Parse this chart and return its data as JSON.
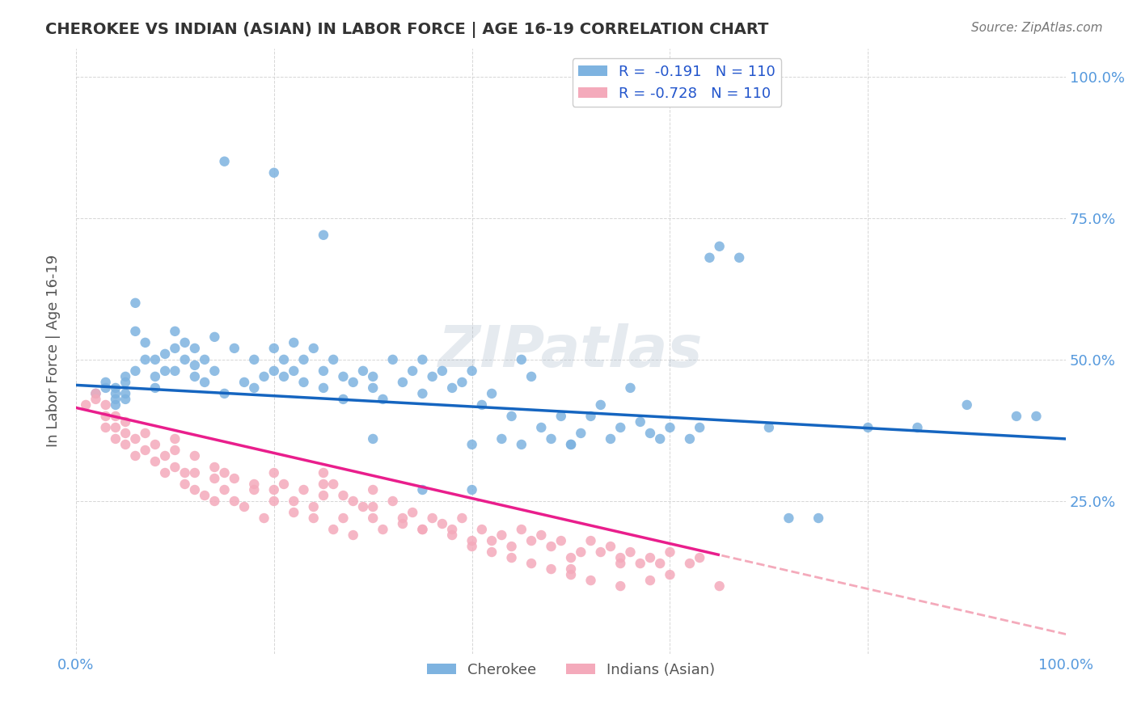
{
  "title": "CHEROKEE VS INDIAN (ASIAN) IN LABOR FORCE | AGE 16-19 CORRELATION CHART",
  "source": "Source: ZipAtlas.com",
  "ylabel": "In Labor Force | Age 16-19",
  "xlim": [
    0.0,
    1.0
  ],
  "ylim_min": -0.02,
  "ylim_max": 1.05,
  "watermark": "ZIPatlas",
  "legend_r1": "R =  -0.191   N = 110",
  "legend_r2": "R = -0.728   N = 110",
  "cherokee_color": "#7EB3E0",
  "indian_color": "#F4AABB",
  "cherokee_line_color": "#1565C0",
  "indian_line_color": "#E91E8C",
  "indian_line_dashed_color": "#F4AABB",
  "background_color": "#FFFFFF",
  "grid_color": "#CCCCCC",
  "title_color": "#333333",
  "axis_label_color": "#5599DD",
  "text_color": "#555555",
  "legend_text_color": "#2255CC",
  "cherokee_line_intercept": 0.455,
  "cherokee_line_slope": -0.095,
  "indian_line_intercept": 0.415,
  "indian_line_slope": -0.4,
  "indian_line_solid_end": 0.65,
  "cherokee_x": [
    0.02,
    0.03,
    0.03,
    0.04,
    0.04,
    0.04,
    0.04,
    0.05,
    0.05,
    0.05,
    0.05,
    0.06,
    0.06,
    0.06,
    0.07,
    0.07,
    0.08,
    0.08,
    0.08,
    0.09,
    0.09,
    0.1,
    0.1,
    0.1,
    0.11,
    0.11,
    0.12,
    0.12,
    0.12,
    0.13,
    0.13,
    0.14,
    0.14,
    0.15,
    0.16,
    0.17,
    0.18,
    0.18,
    0.19,
    0.2,
    0.2,
    0.21,
    0.21,
    0.22,
    0.22,
    0.23,
    0.23,
    0.24,
    0.25,
    0.25,
    0.26,
    0.27,
    0.27,
    0.28,
    0.29,
    0.3,
    0.3,
    0.31,
    0.32,
    0.33,
    0.34,
    0.35,
    0.35,
    0.36,
    0.37,
    0.38,
    0.39,
    0.4,
    0.4,
    0.41,
    0.42,
    0.43,
    0.44,
    0.45,
    0.46,
    0.47,
    0.48,
    0.49,
    0.5,
    0.51,
    0.52,
    0.53,
    0.54,
    0.55,
    0.56,
    0.57,
    0.58,
    0.59,
    0.6,
    0.62,
    0.63,
    0.64,
    0.65,
    0.67,
    0.7,
    0.72,
    0.75,
    0.8,
    0.85,
    0.9,
    0.95,
    0.97,
    0.15,
    0.2,
    0.25,
    0.3,
    0.35,
    0.4,
    0.45,
    0.5
  ],
  "cherokee_y": [
    0.44,
    0.46,
    0.45,
    0.42,
    0.43,
    0.44,
    0.45,
    0.46,
    0.47,
    0.43,
    0.44,
    0.6,
    0.55,
    0.48,
    0.5,
    0.53,
    0.45,
    0.47,
    0.5,
    0.48,
    0.51,
    0.52,
    0.55,
    0.48,
    0.5,
    0.53,
    0.47,
    0.52,
    0.49,
    0.46,
    0.5,
    0.54,
    0.48,
    0.44,
    0.52,
    0.46,
    0.5,
    0.45,
    0.47,
    0.52,
    0.48,
    0.5,
    0.47,
    0.53,
    0.48,
    0.46,
    0.5,
    0.52,
    0.48,
    0.45,
    0.5,
    0.47,
    0.43,
    0.46,
    0.48,
    0.45,
    0.47,
    0.43,
    0.5,
    0.46,
    0.48,
    0.44,
    0.5,
    0.47,
    0.48,
    0.45,
    0.46,
    0.48,
    0.35,
    0.42,
    0.44,
    0.36,
    0.4,
    0.5,
    0.47,
    0.38,
    0.36,
    0.4,
    0.35,
    0.37,
    0.4,
    0.42,
    0.36,
    0.38,
    0.45,
    0.39,
    0.37,
    0.36,
    0.38,
    0.36,
    0.38,
    0.68,
    0.7,
    0.68,
    0.38,
    0.22,
    0.22,
    0.38,
    0.38,
    0.42,
    0.4,
    0.4,
    0.85,
    0.83,
    0.72,
    0.36,
    0.27,
    0.27,
    0.35,
    0.35
  ],
  "indian_x": [
    0.01,
    0.02,
    0.02,
    0.03,
    0.03,
    0.03,
    0.04,
    0.04,
    0.04,
    0.05,
    0.05,
    0.05,
    0.06,
    0.06,
    0.07,
    0.07,
    0.08,
    0.08,
    0.09,
    0.09,
    0.1,
    0.1,
    0.11,
    0.11,
    0.12,
    0.12,
    0.13,
    0.14,
    0.14,
    0.15,
    0.15,
    0.16,
    0.17,
    0.18,
    0.19,
    0.2,
    0.2,
    0.21,
    0.22,
    0.23,
    0.24,
    0.25,
    0.25,
    0.26,
    0.27,
    0.28,
    0.29,
    0.3,
    0.3,
    0.31,
    0.32,
    0.33,
    0.34,
    0.35,
    0.36,
    0.37,
    0.38,
    0.39,
    0.4,
    0.41,
    0.42,
    0.43,
    0.44,
    0.45,
    0.46,
    0.47,
    0.48,
    0.49,
    0.5,
    0.51,
    0.52,
    0.53,
    0.54,
    0.55,
    0.56,
    0.57,
    0.58,
    0.59,
    0.6,
    0.62,
    0.63,
    0.5,
    0.55,
    0.58,
    0.6,
    0.65,
    0.25,
    0.27,
    0.3,
    0.33,
    0.35,
    0.38,
    0.4,
    0.42,
    0.44,
    0.46,
    0.48,
    0.5,
    0.52,
    0.55,
    0.1,
    0.12,
    0.14,
    0.16,
    0.18,
    0.2,
    0.22,
    0.24,
    0.26,
    0.28
  ],
  "indian_y": [
    0.42,
    0.44,
    0.43,
    0.4,
    0.38,
    0.42,
    0.36,
    0.38,
    0.4,
    0.35,
    0.37,
    0.39,
    0.33,
    0.36,
    0.34,
    0.37,
    0.32,
    0.35,
    0.3,
    0.33,
    0.31,
    0.34,
    0.28,
    0.3,
    0.27,
    0.3,
    0.26,
    0.29,
    0.25,
    0.27,
    0.3,
    0.25,
    0.24,
    0.28,
    0.22,
    0.3,
    0.27,
    0.28,
    0.25,
    0.27,
    0.24,
    0.3,
    0.26,
    0.28,
    0.22,
    0.25,
    0.24,
    0.22,
    0.27,
    0.2,
    0.25,
    0.21,
    0.23,
    0.2,
    0.22,
    0.21,
    0.2,
    0.22,
    0.18,
    0.2,
    0.18,
    0.19,
    0.17,
    0.2,
    0.18,
    0.19,
    0.17,
    0.18,
    0.15,
    0.16,
    0.18,
    0.16,
    0.17,
    0.15,
    0.16,
    0.14,
    0.15,
    0.14,
    0.16,
    0.14,
    0.15,
    0.13,
    0.14,
    0.11,
    0.12,
    0.1,
    0.28,
    0.26,
    0.24,
    0.22,
    0.2,
    0.19,
    0.17,
    0.16,
    0.15,
    0.14,
    0.13,
    0.12,
    0.11,
    0.1,
    0.36,
    0.33,
    0.31,
    0.29,
    0.27,
    0.25,
    0.23,
    0.22,
    0.2,
    0.19
  ]
}
